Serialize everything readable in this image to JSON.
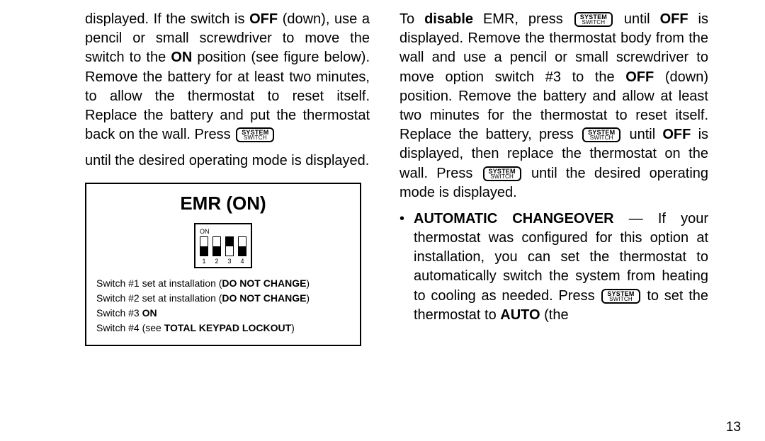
{
  "button": {
    "line1": "SYSTEM",
    "line2": "SWITCH"
  },
  "leftCol": {
    "para1_pre": "displayed. If the switch is ",
    "para1_bold_off": "OFF",
    "para1_mid1": " (down), use a pencil or small screwdriver to move the switch to the ",
    "para1_bold_on": "ON",
    "para1_mid2": " position (see figure be­low). Remove the battery for at least two minutes, to allow the thermostat to reset itself. Replace the battery and put the ther­mostat back on the wall. Press ",
    "para1_after": "until the desired operating mode is dis­played.",
    "figure": {
      "title": "EMR (ON)",
      "on_label": "ON",
      "switches": [
        {
          "num": "1",
          "pos": "down"
        },
        {
          "num": "2",
          "pos": "down"
        },
        {
          "num": "3",
          "pos": "up"
        },
        {
          "num": "4",
          "pos": "down"
        }
      ],
      "notes": [
        {
          "pre": "Switch #1 set at installation (",
          "bold": "DO NOT CHANGE",
          "post": ")"
        },
        {
          "pre": "Switch #2 set at installation (",
          "bold": "DO NOT CHANGE",
          "post": ")"
        },
        {
          "pre": "Switch #3 ",
          "bold": "ON",
          "post": ""
        },
        {
          "pre": "Switch #4 (see ",
          "bold": "TOTAL KEYPAD LOCKOUT",
          "post": ")"
        }
      ]
    }
  },
  "rightCol": {
    "p1_a": "To ",
    "p1_bold1": "disable",
    "p1_b": " EMR, press ",
    "p1_c": " until ",
    "p1_bold2": "OFF",
    "p1_afterline": "is displayed. Remove the thermostat body from the wall and use a pencil or small screwdriver to move option switch #3 to the ",
    "p1_bold3": "OFF",
    "p1_d": " (down) position. Remove the battery and allow at least two minutes for the thermostat to reset itself. Replace the bat­tery, press ",
    "p1_e": " until ",
    "p1_bold4": "OFF",
    "p1_f": " is displayed, then replace the thermostat on the wall. Press ",
    "p1_g": " until the desired operating mode is displayed.",
    "bullet_mark": "•",
    "p2_head": "AUTOMATIC CHANGEOVER",
    "p2_a": " — If your thermostat was configured for this option at installation, you can set the thermostat to automatically switch the system from heating to cooling as needed. Press ",
    "p2_b": " to set the thermostat to ",
    "p2_bold_auto": "AUTO",
    "p2_c": " (the"
  },
  "pageNumber": "13"
}
